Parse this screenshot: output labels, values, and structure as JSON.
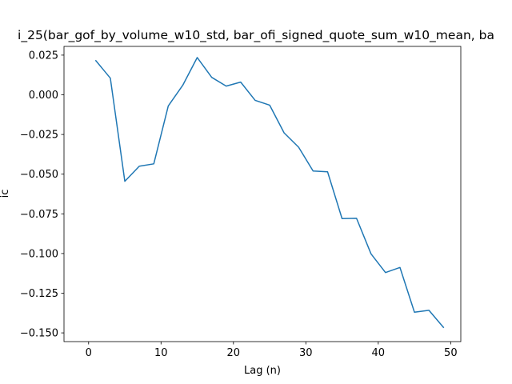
{
  "chart_data": {
    "type": "line",
    "title": "i_25(bar_gof_by_volume_w10_std, bar_ofi_signed_quote_sum_w10_mean, ba",
    "xlabel": "Lag (n)",
    "ylabel": "ic",
    "xlim": [
      -3.4,
      51.4
    ],
    "ylim": [
      -0.1555,
      0.0305
    ],
    "xticks": [
      0,
      10,
      20,
      30,
      40,
      50
    ],
    "xtick_labels": [
      "0",
      "10",
      "20",
      "30",
      "40",
      "50"
    ],
    "yticks": [
      0.025,
      0.0,
      -0.025,
      -0.05,
      -0.075,
      -0.1,
      -0.125,
      -0.15
    ],
    "ytick_labels": [
      "0.025",
      "0.000",
      "−0.025",
      "−0.050",
      "−0.075",
      "−0.100",
      "−0.125",
      "−0.150"
    ],
    "grid": false,
    "series": [
      {
        "color": "#1f77b4",
        "x": [
          1,
          3,
          5,
          7,
          9,
          11,
          13,
          15,
          17,
          19,
          21,
          23,
          25,
          27,
          29,
          31,
          33,
          35,
          37,
          39,
          41,
          43,
          45,
          47,
          49
        ],
        "y": [
          0.0215,
          0.0105,
          -0.0545,
          -0.045,
          -0.0435,
          -0.007,
          0.006,
          0.0235,
          0.011,
          0.0055,
          0.008,
          -0.0035,
          -0.0065,
          -0.024,
          -0.033,
          -0.048,
          -0.0485,
          -0.078,
          -0.0778,
          -0.1002,
          -0.112,
          -0.1088,
          -0.137,
          -0.1358,
          -0.1465
        ]
      }
    ]
  }
}
